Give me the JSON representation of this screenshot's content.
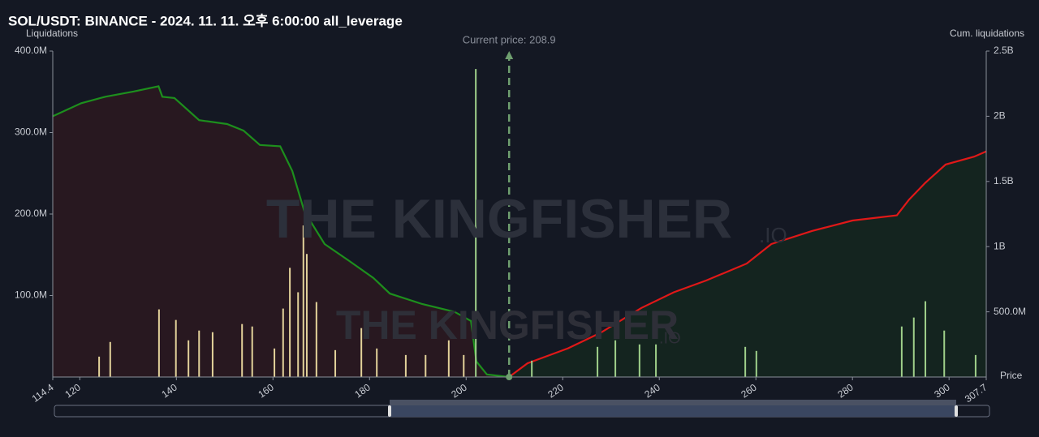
{
  "chart_data": {
    "type": "combo",
    "title": "SOL/USDT: BINANCE - 2024. 11. 11. 오후 6:00:00 all_leverage",
    "y_label": "Liquidations",
    "y2_label": "Cum. liquidations",
    "x_label": "Price",
    "annotation": {
      "text": "Current price: 208.9",
      "x": 208.9,
      "color": "#6f9f6f"
    },
    "watermark": {
      "text": "THE KINGFISHER",
      "suffix": ".IO"
    },
    "xlim": [
      114.4,
      307.7
    ],
    "xticks": [
      114.4,
      120,
      140,
      160,
      180,
      200,
      220,
      240,
      260,
      280,
      300,
      307.7
    ],
    "ylim": [
      0,
      400
    ],
    "yticks": [
      {
        "value": 100,
        "label": "100.0M"
      },
      {
        "value": 200,
        "label": "200.0M"
      },
      {
        "value": 300,
        "label": "300.0M"
      },
      {
        "value": 400,
        "label": "400.0M"
      }
    ],
    "y2lim": [
      0,
      2500
    ],
    "y2ticks": [
      {
        "value": 500,
        "label": "500.0M"
      },
      {
        "value": 1000,
        "label": "1B"
      },
      {
        "value": 1500,
        "label": "1.5B"
      },
      {
        "value": 2000,
        "label": "2B"
      },
      {
        "value": 2500,
        "label": "2.5B"
      }
    ],
    "series": [
      {
        "type": "bar",
        "color": "#e3d29a",
        "x": [
          124.0,
          126.3,
          136.4,
          139.9,
          142.5,
          144.7,
          147.5,
          153.6,
          155.7,
          160.3,
          162.1,
          163.5,
          165.2,
          166.3,
          167.0,
          169.0,
          172.9,
          178.3,
          181.5,
          187.5,
          191.6,
          196.4,
          199.5
        ],
        "values": [
          25,
          43,
          83,
          70,
          45,
          57,
          55,
          65,
          62,
          35,
          84,
          134,
          104,
          186,
          151,
          92,
          33,
          60,
          35,
          27,
          27,
          45,
          27
        ]
      },
      {
        "type": "bar",
        "color": "#9fd08a",
        "x": [
          202.0,
          213.6,
          227.2,
          230.9,
          235.9,
          239.3,
          257.8,
          260.1,
          290.2,
          292.7,
          295.1,
          299.0,
          305.5
        ],
        "values": [
          378,
          20,
          37,
          45,
          40,
          40,
          37,
          32,
          62,
          73,
          93,
          57,
          27
        ]
      },
      {
        "type": "line",
        "axis": "y2",
        "color": "#1d8f1d",
        "fill": "#2a1820",
        "x": [
          114.4,
          120.3,
          125.3,
          131.2,
          136.3,
          137.1,
          139.6,
          144.7,
          150.5,
          153.9,
          157.3,
          161.5,
          164.0,
          166.5,
          170.7,
          175.8,
          180.8,
          184.2,
          190.9,
          197.6,
          201.0,
          202.1,
          204.3,
          208.9
        ],
        "values": [
          2000,
          2100,
          2150,
          2190,
          2230,
          2150,
          2140,
          1970,
          1940,
          1890,
          1780,
          1770,
          1580,
          1270,
          1020,
          890,
          760,
          640,
          560,
          500,
          430,
          120,
          20,
          0
        ]
      },
      {
        "type": "line",
        "axis": "y2",
        "color": "#e01818",
        "fill": "#14261f",
        "x": [
          208.9,
          212.7,
          221.1,
          227.9,
          236.3,
          243.0,
          249.7,
          258.1,
          263.2,
          271.6,
          280.0,
          289.2,
          291.7,
          295.1,
          299.3,
          305.2,
          307.7
        ],
        "values": [
          0,
          105,
          220,
          340,
          530,
          650,
          740,
          870,
          1020,
          1120,
          1200,
          1240,
          1360,
          1490,
          1630,
          1690,
          1730
        ]
      }
    ]
  }
}
